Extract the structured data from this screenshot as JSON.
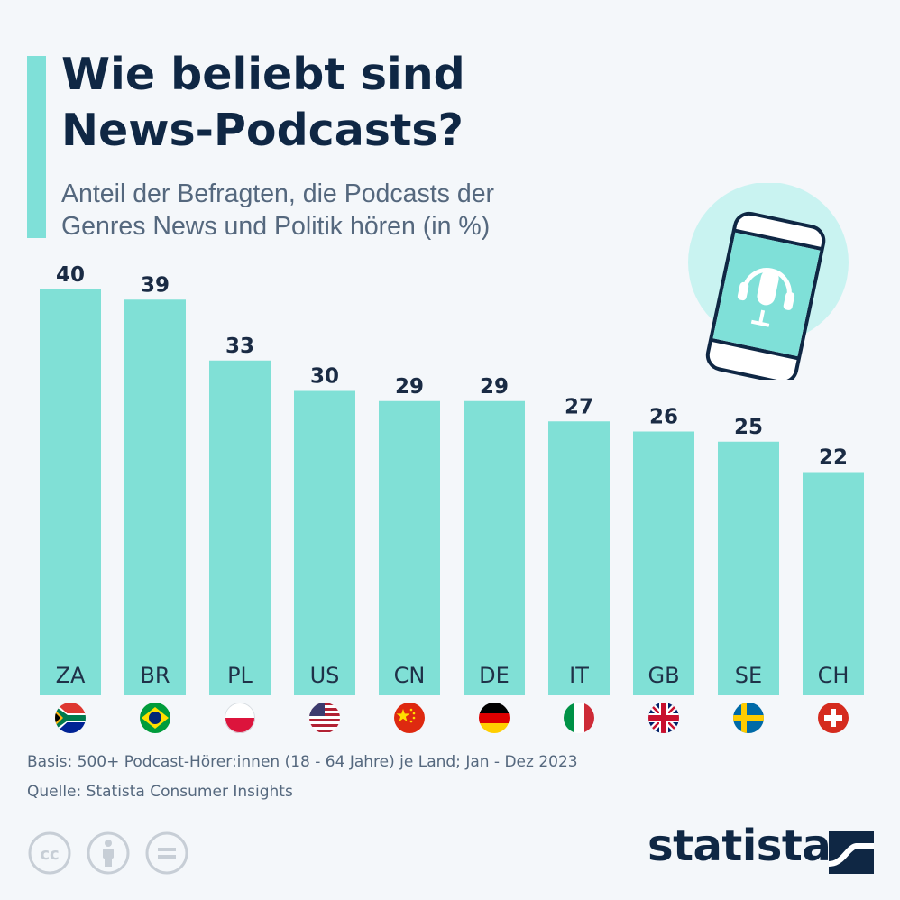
{
  "header": {
    "title_line1": "Wie beliebt sind",
    "title_line2": "News-Podcasts?",
    "subtitle_line1": "Anteil der Befragten, die Podcasts der",
    "subtitle_line2": "Genres News und Politik hören (in %)"
  },
  "chart_data": {
    "type": "bar",
    "categories": [
      "ZA",
      "BR",
      "PL",
      "US",
      "CN",
      "DE",
      "IT",
      "GB",
      "SE",
      "CH"
    ],
    "values": [
      40,
      39,
      33,
      30,
      29,
      29,
      27,
      26,
      25,
      22
    ],
    "ylim": [
      0,
      40
    ],
    "grid": false,
    "bar_color": "#80e0d6",
    "flags": [
      "south-africa-flag-icon",
      "brazil-flag-icon",
      "poland-flag-icon",
      "usa-flag-icon",
      "china-flag-icon",
      "germany-flag-icon",
      "italy-flag-icon",
      "uk-flag-icon",
      "sweden-flag-icon",
      "switzerland-flag-icon"
    ]
  },
  "footer": {
    "basis": "Basis: 500+ Podcast-Hörer:innen (18 - 64 Jahre) je Land; Jan - Dez 2023",
    "source": "Quelle: Statista Consumer Insights"
  },
  "brand": {
    "name": "statista",
    "color": "#0f2744"
  },
  "icons": [
    "cc-icon",
    "attribution-icon",
    "no-derivatives-icon",
    "podcast-phone-icon"
  ]
}
